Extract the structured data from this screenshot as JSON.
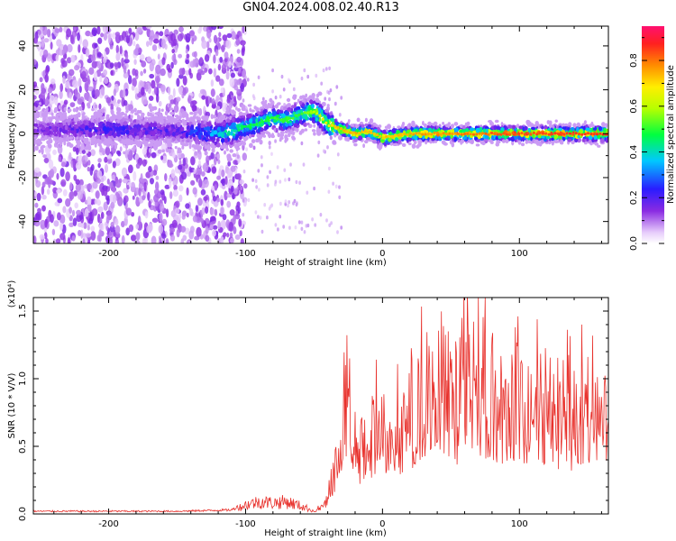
{
  "title": "GN04.2024.008.02.40.R13",
  "chart_data": [
    {
      "type": "heatmap",
      "xlabel": "Height of straight line (km)",
      "ylabel": "Frequency (Hz)",
      "xlim": [
        -255,
        165
      ],
      "ylim": [
        -50,
        49
      ],
      "x_ticks": [
        -200,
        -100,
        0,
        100
      ],
      "y_ticks": [
        -40,
        -20,
        0,
        20,
        40
      ],
      "colorbar": {
        "label": "Normalized spectral amplitude",
        "range": [
          0.0,
          0.95
        ],
        "ticks": [
          0.0,
          0.2,
          0.4,
          0.6,
          0.8
        ],
        "colormap": "rainbow (white-violet-blue-cyan-green-yellow-orange-red-magenta)"
      },
      "dominant_frequency_track": {
        "x": [
          -250,
          -200,
          -150,
          -120,
          -110,
          -100,
          -90,
          -80,
          -70,
          -60,
          -50,
          -45,
          -40,
          -35,
          -30,
          -20,
          -10,
          0,
          20,
          50,
          80,
          100,
          130,
          165
        ],
        "y": [
          2,
          2,
          1,
          0,
          1,
          3,
          5,
          7,
          6,
          9,
          10,
          8,
          4,
          3,
          2,
          0,
          1,
          -2,
          0,
          0,
          0,
          0,
          0,
          0
        ]
      },
      "peak_amplitude_by_height": {
        "x": [
          -250,
          -200,
          -150,
          -120,
          -110,
          -100,
          -80,
          -60,
          -40,
          -30,
          -20,
          0,
          30,
          60,
          100,
          130,
          165
        ],
        "amplitude": [
          0.18,
          0.25,
          0.22,
          0.4,
          0.5,
          0.5,
          0.55,
          0.55,
          0.72,
          0.8,
          0.8,
          0.78,
          0.82,
          0.85,
          0.9,
          0.9,
          0.92
        ]
      },
      "noise_region_end_x": -105
    },
    {
      "type": "line",
      "xlabel": "Height of straight line (km)",
      "ylabel": "SNR (10 * V/V)",
      "y_multiplier": "(x10⁴)",
      "xlim": [
        -255,
        165
      ],
      "ylim": [
        0,
        1.6
      ],
      "x_ticks": [
        -200,
        -100,
        0,
        100
      ],
      "y_ticks": [
        0.0,
        0.5,
        1.0,
        1.5
      ],
      "color": "#e8312c",
      "series": [
        {
          "envelope_x": [
            -255,
            -200,
            -150,
            -110,
            -100,
            -90,
            -80,
            -70,
            -60,
            -50,
            -45,
            -40,
            -35,
            -30,
            -28,
            -26,
            -24,
            -20,
            -10,
            0,
            10,
            20,
            30,
            40,
            50,
            60,
            70,
            80,
            90,
            100,
            110,
            120,
            130,
            140,
            150,
            165
          ],
          "envelope_y": [
            0.02,
            0.02,
            0.02,
            0.03,
            0.09,
            0.12,
            0.11,
            0.12,
            0.08,
            0.03,
            0.05,
            0.12,
            0.25,
            0.45,
            0.7,
            1.0,
            0.55,
            0.45,
            0.5,
            0.55,
            0.62,
            0.7,
            0.78,
            0.85,
            0.82,
            0.8,
            0.9,
            0.85,
            0.8,
            0.82,
            0.78,
            0.75,
            0.72,
            0.7,
            0.72,
            0.75
          ],
          "peaks": [
            {
              "x": -27,
              "y": 1.1
            },
            {
              "x": -24,
              "y": 1.15
            },
            {
              "x": 28,
              "y": 1.0
            },
            {
              "x": 48,
              "y": 1.35
            },
            {
              "x": 58,
              "y": 1.45
            },
            {
              "x": 70,
              "y": 1.6
            },
            {
              "x": 75,
              "y": 1.6
            },
            {
              "x": 80,
              "y": 1.3
            }
          ]
        }
      ]
    }
  ]
}
